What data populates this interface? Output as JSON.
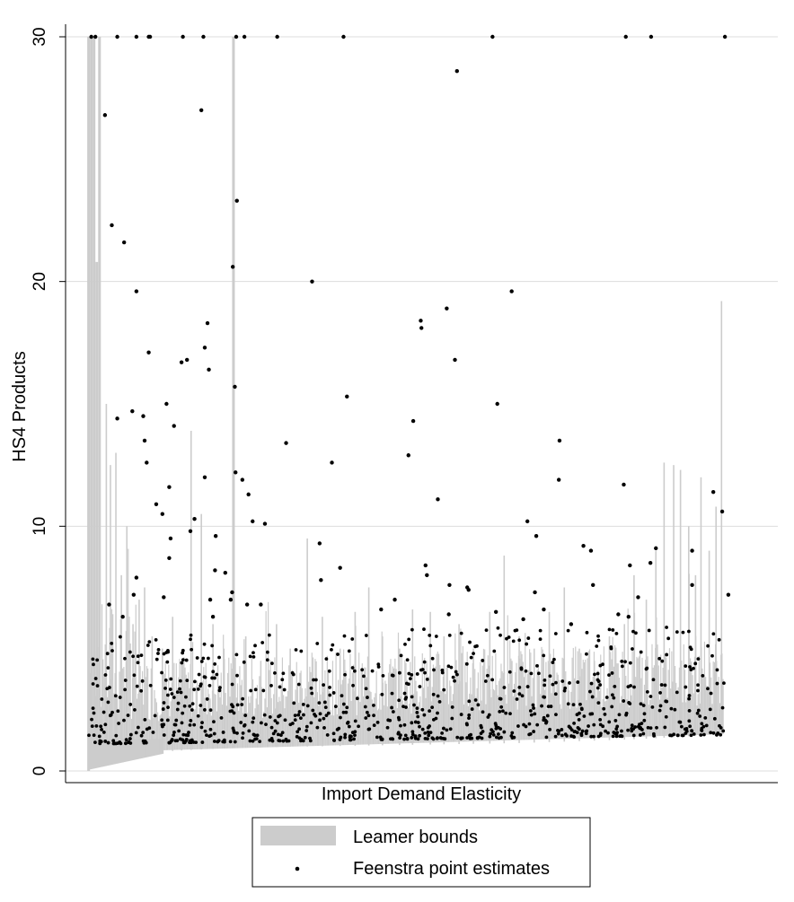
{
  "chart_data": {
    "type": "scatter",
    "title": "",
    "xlabel": "Import Demand Elasticity",
    "ylabel": "HS4 Products",
    "ylim": [
      0,
      30
    ],
    "yticks": [
      0,
      10,
      20,
      30
    ],
    "grid": true,
    "legend_position": "bottom",
    "legend": [
      "Leamer bounds",
      "Feenstra point estimates"
    ],
    "colors": {
      "bounds": "#cccccc",
      "points": "#000000",
      "grid": "#dddddd"
    },
    "x_domain": [
      0,
      1000
    ],
    "series": [
      {
        "name": "Leamer bounds",
        "kind": "interval",
        "values": [
          [
            10,
            0.0,
            30.0
          ],
          [
            14,
            0.1,
            30.0
          ],
          [
            18,
            0.2,
            30.0
          ],
          [
            22,
            0.3,
            20.8
          ],
          [
            26,
            0.35,
            30.0
          ],
          [
            36,
            0.5,
            15.0
          ],
          [
            42,
            0.55,
            12.5
          ],
          [
            50,
            0.6,
            13.0
          ],
          [
            58,
            0.65,
            8.0
          ],
          [
            66,
            0.7,
            10.0
          ],
          [
            75,
            0.72,
            6.0
          ],
          [
            84,
            0.74,
            7.0
          ],
          [
            92,
            0.76,
            7.5
          ],
          [
            103,
            0.78,
            5.5
          ],
          [
            118,
            0.8,
            5.0
          ],
          [
            133,
            0.82,
            6.3
          ],
          [
            146,
            0.84,
            4.5
          ],
          [
            160,
            0.86,
            13.9
          ],
          [
            175,
            0.88,
            10.5
          ],
          [
            192,
            0.9,
            6.0
          ],
          [
            208,
            0.92,
            5.0
          ],
          [
            222,
            0.94,
            30.0
          ],
          [
            240,
            0.95,
            5.5
          ],
          [
            262,
            0.96,
            4.5
          ],
          [
            285,
            0.98,
            6.0
          ],
          [
            305,
            0.99,
            5.0
          ],
          [
            330,
            1.0,
            9.5
          ],
          [
            352,
            1.01,
            6.3
          ],
          [
            378,
            1.02,
            5.0
          ],
          [
            400,
            1.03,
            6.5
          ],
          [
            420,
            1.04,
            7.5
          ],
          [
            440,
            1.05,
            5.5
          ],
          [
            465,
            1.06,
            5.0
          ],
          [
            484,
            1.07,
            6.6
          ],
          [
            510,
            1.08,
            6.5
          ],
          [
            530,
            1.09,
            5.5
          ],
          [
            552,
            1.1,
            6.0
          ],
          [
            573,
            1.11,
            5.0
          ],
          [
            597,
            1.12,
            6.5
          ],
          [
            618,
            1.13,
            8.8
          ],
          [
            640,
            1.14,
            5.5
          ],
          [
            662,
            1.16,
            5.0
          ],
          [
            684,
            1.18,
            6.5
          ],
          [
            706,
            1.2,
            7.5
          ],
          [
            728,
            1.22,
            5.0
          ],
          [
            750,
            1.24,
            4.5
          ],
          [
            772,
            1.26,
            5.5
          ],
          [
            794,
            1.28,
            6.0
          ],
          [
            808,
            1.3,
            8.0
          ],
          [
            826,
            1.32,
            7.0
          ],
          [
            840,
            1.34,
            9.0
          ],
          [
            852,
            1.36,
            12.6
          ],
          [
            866,
            1.38,
            12.5
          ],
          [
            876,
            1.4,
            12.3
          ],
          [
            888,
            1.42,
            10.0
          ],
          [
            898,
            1.44,
            8.0
          ],
          [
            906,
            1.46,
            12.0
          ],
          [
            918,
            1.48,
            9.0
          ],
          [
            928,
            1.5,
            10.8
          ],
          [
            936,
            1.52,
            19.2
          ]
        ]
      },
      {
        "name": "Feenstra point estimates",
        "kind": "point",
        "values": [
          [
            14,
            30.0
          ],
          [
            20,
            30.0
          ],
          [
            52,
            30.0
          ],
          [
            80,
            30.0
          ],
          [
            98,
            30.0
          ],
          [
            100,
            30.0
          ],
          [
            148,
            30.0
          ],
          [
            178,
            30.0
          ],
          [
            226,
            30.0
          ],
          [
            238,
            30.0
          ],
          [
            286,
            30.0
          ],
          [
            383,
            30.0
          ],
          [
            601,
            30.0
          ],
          [
            796,
            30.0
          ],
          [
            833,
            30.0
          ],
          [
            941,
            30.0
          ],
          [
            34,
            26.8
          ],
          [
            44,
            22.3
          ],
          [
            62,
            21.6
          ],
          [
            80,
            19.6
          ],
          [
            175,
            27.0
          ],
          [
            221,
            20.6
          ],
          [
            227,
            23.3
          ],
          [
            337,
            20.0
          ],
          [
            549,
            28.6
          ],
          [
            629,
            19.6
          ],
          [
            184,
            18.3
          ],
          [
            180,
            17.3
          ],
          [
            496,
            18.4
          ],
          [
            497,
            18.1
          ],
          [
            534,
            18.9
          ],
          [
            546,
            16.8
          ],
          [
            98,
            17.1
          ],
          [
            146,
            16.7
          ],
          [
            154,
            16.8
          ],
          [
            124,
            15.0
          ],
          [
            186,
            16.4
          ],
          [
            224,
            15.7
          ],
          [
            388,
            15.3
          ],
          [
            608,
            15.0
          ],
          [
            52,
            14.4
          ],
          [
            74,
            14.7
          ],
          [
            90,
            14.5
          ],
          [
            135,
            14.1
          ],
          [
            485,
            14.3
          ],
          [
            699,
            13.5
          ],
          [
            92,
            13.5
          ],
          [
            95,
            12.6
          ],
          [
            299,
            13.4
          ],
          [
            366,
            12.6
          ],
          [
            478,
            12.9
          ],
          [
            180,
            12.0
          ],
          [
            225,
            12.2
          ],
          [
            235,
            11.9
          ],
          [
            128,
            11.6
          ],
          [
            244,
            11.3
          ],
          [
            521,
            11.1
          ],
          [
            698,
            11.9
          ],
          [
            793,
            11.7
          ],
          [
            924,
            11.4
          ],
          [
            109,
            10.9
          ],
          [
            118,
            10.5
          ],
          [
            165,
            10.3
          ],
          [
            250,
            10.2
          ],
          [
            268,
            10.1
          ],
          [
            652,
            10.2
          ],
          [
            665,
            9.6
          ],
          [
            159,
            9.8
          ],
          [
            130,
            9.5
          ],
          [
            196,
            9.6
          ],
          [
            348,
            9.3
          ],
          [
            734,
            9.2
          ],
          [
            745,
            9.0
          ],
          [
            832,
            8.5
          ],
          [
            840,
            9.1
          ],
          [
            893,
            9.0
          ],
          [
            937,
            10.6
          ],
          [
            128,
            8.7
          ],
          [
            195,
            8.2
          ],
          [
            210,
            8.1
          ],
          [
            378,
            8.3
          ],
          [
            503,
            8.4
          ],
          [
            505,
            8.0
          ],
          [
            538,
            7.6
          ],
          [
            564,
            7.5
          ],
          [
            566,
            7.4
          ],
          [
            748,
            7.6
          ],
          [
            802,
            8.4
          ],
          [
            814,
            7.1
          ],
          [
            893,
            7.6
          ],
          [
            946,
            7.2
          ],
          [
            40,
            6.8
          ],
          [
            60,
            6.3
          ],
          [
            76,
            7.2
          ],
          [
            80,
            7.9
          ],
          [
            120,
            7.1
          ],
          [
            188,
            7.0
          ],
          [
            192,
            6.3
          ],
          [
            220,
            7.3
          ],
          [
            218,
            7.0
          ],
          [
            242,
            6.8
          ],
          [
            262,
            6.8
          ],
          [
            350,
            7.8
          ],
          [
            438,
            6.6
          ],
          [
            458,
            7.0
          ],
          [
            537,
            6.4
          ],
          [
            606,
            6.5
          ],
          [
            646,
            6.2
          ],
          [
            663,
            7.3
          ],
          [
            676,
            6.6
          ],
          [
            716,
            6.0
          ],
          [
            785,
            6.4
          ],
          [
            800,
            6.3
          ]
        ]
      }
    ],
    "background_cloud": {
      "description_points": "dense cluster of point estimates between about 1 and 5 along the entire range",
      "y_range": [
        1.0,
        5.5
      ]
    }
  }
}
